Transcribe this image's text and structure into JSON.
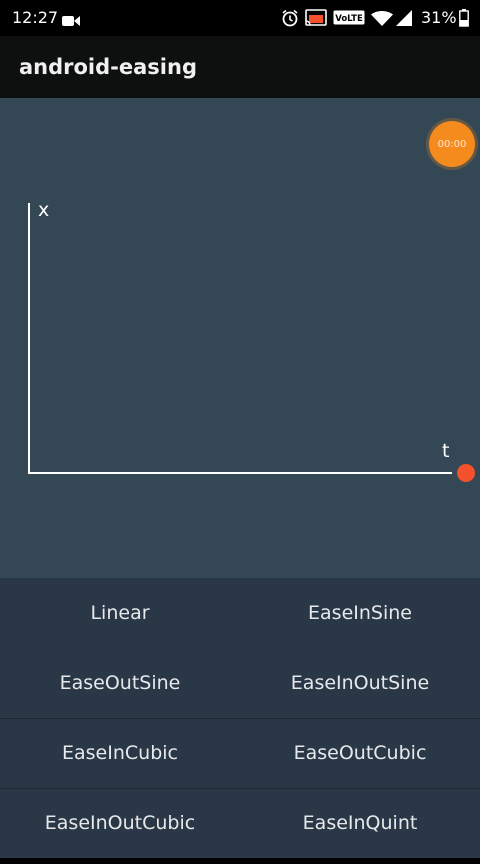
{
  "status_bar": {
    "time": "12:27",
    "battery_percent": "31%",
    "volte": "VoLTE",
    "icons": [
      "video-camera-icon",
      "alarm-icon",
      "cast-icon",
      "volte-icon",
      "wifi-icon",
      "signal-icon",
      "battery-icon"
    ]
  },
  "app_bar": {
    "title": "android-easing"
  },
  "canvas": {
    "timer_text": "00:00",
    "y_axis_label": "x",
    "x_axis_label": "t",
    "colors": {
      "background": "#334755",
      "axis": "#ffffff",
      "dot": "#f4512c",
      "timer": "#f58a1d"
    }
  },
  "easings": [
    "Linear",
    "EaseInSine",
    "EaseOutSine",
    "EaseInOutSine",
    "EaseInCubic",
    "EaseOutCubic",
    "EaseInOutCubic",
    "EaseInQuint"
  ]
}
